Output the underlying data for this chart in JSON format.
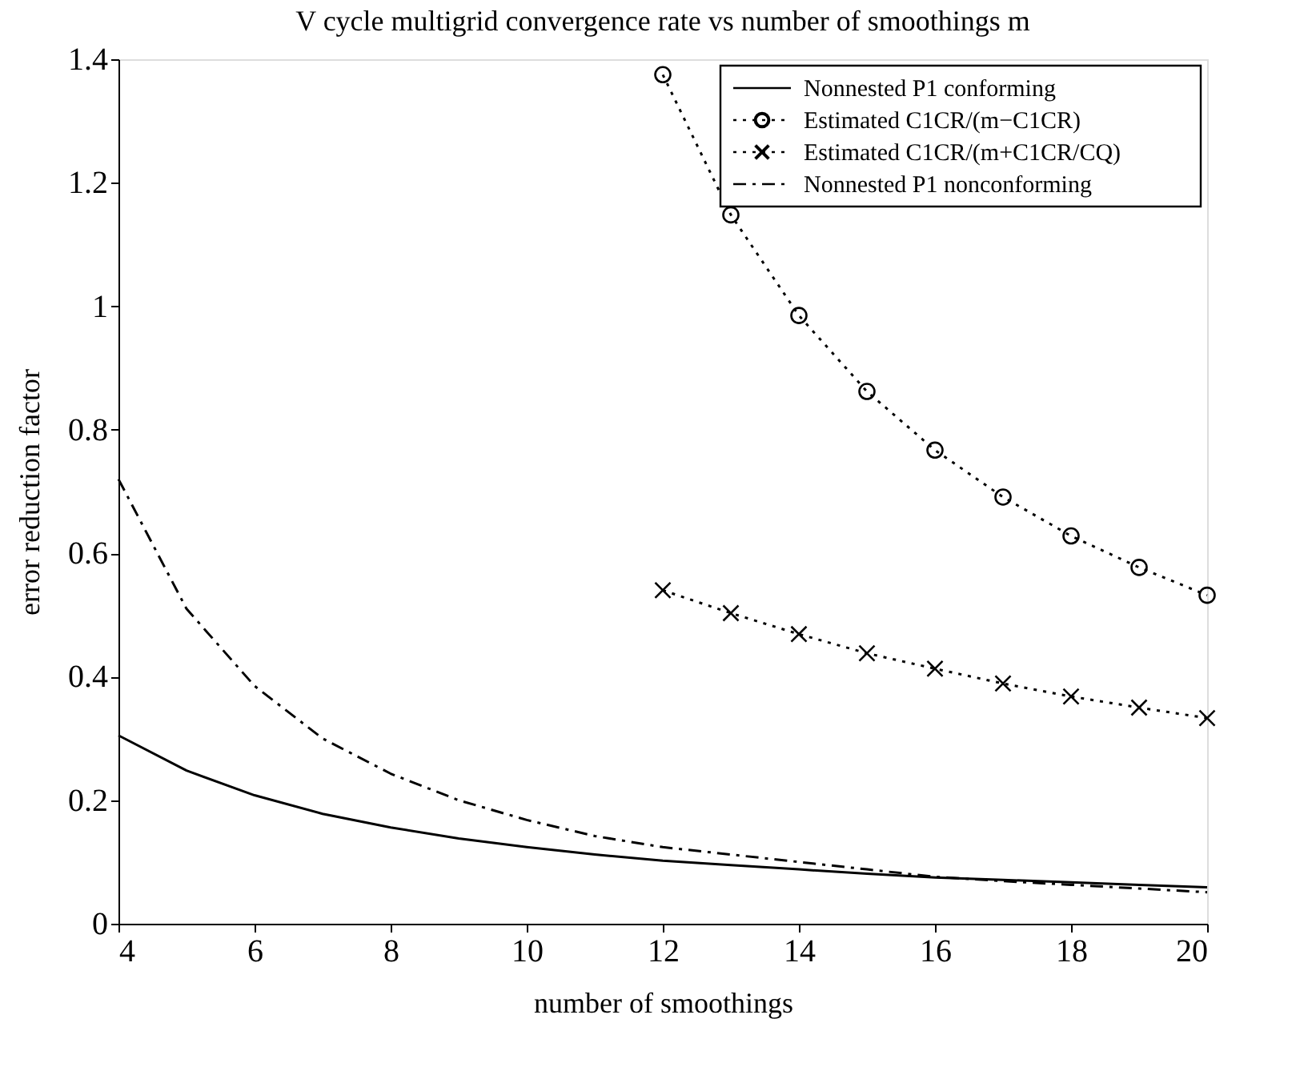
{
  "chart_data": {
    "type": "line",
    "title": "V cycle multigrid convergence rate vs number of smoothings  m",
    "xlabel": "number of smoothings",
    "ylabel": "error reduction factor",
    "xlim": [
      4,
      20
    ],
    "xticks": [
      4,
      6,
      8,
      10,
      12,
      14,
      16,
      18,
      20
    ],
    "ylim": [
      0,
      1.4
    ],
    "yticks": [
      0,
      0.2,
      0.4,
      0.6,
      0.8,
      1,
      1.2,
      1.4
    ],
    "grid": false,
    "legend": "top right",
    "series": [
      {
        "name": "Nonnested P1 conforming",
        "color": "#000000",
        "line_style": "solid",
        "marker": "none",
        "x": [
          4,
          5,
          6,
          7,
          8,
          9,
          10,
          11,
          12,
          13,
          14,
          15,
          16,
          17,
          18,
          19,
          20
        ],
        "values": [
          0.305,
          0.248,
          0.208,
          0.178,
          0.156,
          0.138,
          0.124,
          0.112,
          0.102,
          0.095,
          0.088,
          0.081,
          0.075,
          0.071,
          0.067,
          0.063,
          0.059
        ]
      },
      {
        "name": "Estimated C1CR/(m−C1CR)",
        "color": "#000000",
        "line_style": "dotted",
        "marker": "circle",
        "x": [
          12,
          13,
          14,
          15,
          16,
          17,
          18,
          19,
          20
        ],
        "values": [
          1.375,
          1.148,
          0.985,
          0.862,
          0.767,
          0.691,
          0.628,
          0.577,
          0.532
        ]
      },
      {
        "name": "Estimated C1CR/(m+C1CR/CQ)",
        "color": "#000000",
        "line_style": "dotted",
        "marker": "cross",
        "x": [
          12,
          13,
          14,
          15,
          16,
          17,
          18,
          19,
          20
        ],
        "values": [
          0.54,
          0.503,
          0.469,
          0.438,
          0.413,
          0.389,
          0.368,
          0.35,
          0.333
        ]
      },
      {
        "name": "Nonnested P1 nonconforming",
        "color": "#000000",
        "line_style": "dashdot",
        "marker": "none",
        "x": [
          4,
          5,
          6,
          7,
          8,
          9,
          10,
          11,
          12,
          13,
          14,
          15,
          16,
          17,
          18,
          19,
          20
        ],
        "values": [
          0.72,
          0.51,
          0.385,
          0.3,
          0.243,
          0.2,
          0.168,
          0.142,
          0.124,
          0.112,
          0.1,
          0.088,
          0.076,
          0.069,
          0.063,
          0.057,
          0.051
        ]
      }
    ]
  }
}
